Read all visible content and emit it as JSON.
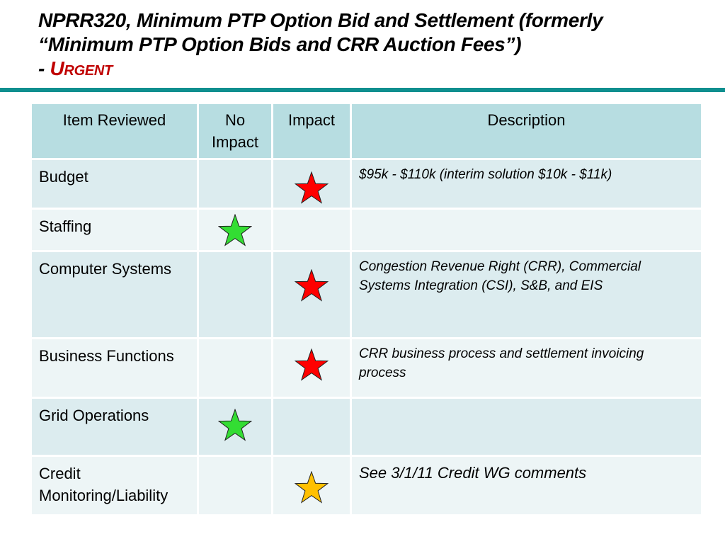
{
  "title": {
    "line1": "NPRR320, Minimum PTP Option Bid and Settlement (formerly",
    "line2": "“Minimum PTP Option Bids and CRR Auction Fees”)",
    "dash": "- ",
    "urgent": "Urgent"
  },
  "table": {
    "headers": {
      "item": "Item Reviewed",
      "no_impact": "No Impact",
      "impact": "Impact",
      "description": "Description"
    },
    "rows": [
      {
        "item": "Budget",
        "mark": "impact",
        "star_color": "red",
        "description": "$95k - $110k (interim solution $10k - $11k)"
      },
      {
        "item": "Staffing",
        "mark": "no_impact",
        "star_color": "green",
        "description": ""
      },
      {
        "item": "Computer Systems",
        "mark": "impact",
        "star_color": "red",
        "description": "Congestion Revenue Right (CRR), Commercial Systems Integration (CSI), S&B, and EIS"
      },
      {
        "item": "Business Functions",
        "mark": "impact",
        "star_color": "red",
        "description": "CRR business process and settlement invoicing process"
      },
      {
        "item": "Grid Operations",
        "mark": "no_impact",
        "star_color": "green",
        "description": ""
      },
      {
        "item": "Credit Monitoring/Liability",
        "mark": "impact",
        "star_color": "yellow",
        "description": "See 3/1/11 Credit WG comments"
      }
    ]
  },
  "colors": {
    "rule": "#0f8f8f",
    "header_bg": "#b7dde1",
    "row_odd_bg": "#dcecef",
    "row_even_bg": "#edf5f6",
    "urgent_text": "#c00000",
    "star_red": "#ff0000",
    "star_green": "#33dd33",
    "star_yellow": "#ffc000"
  },
  "icons": {
    "red": "red-star-icon",
    "green": "green-star-icon",
    "yellow": "yellow-star-icon"
  }
}
